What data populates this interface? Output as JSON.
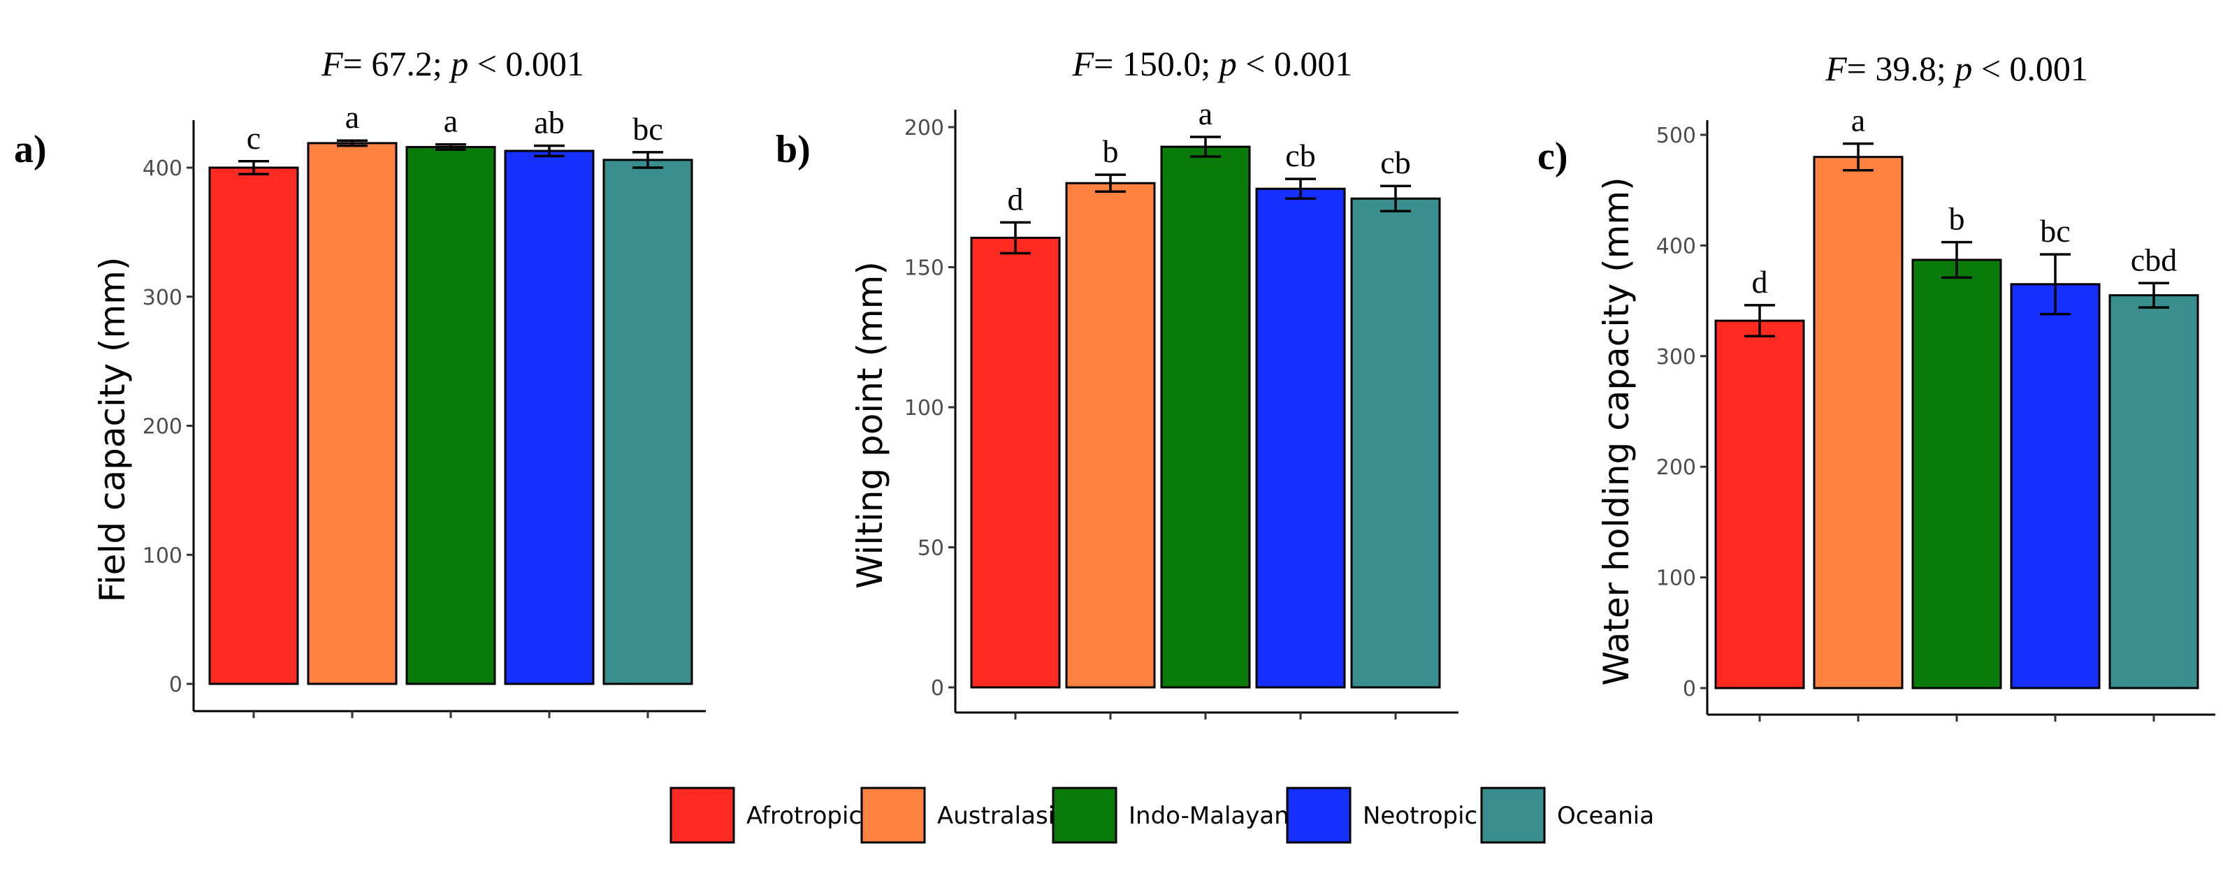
{
  "chart_data": [
    {
      "type": "bar",
      "panel_label": "a)",
      "title": {
        "F_label": "F",
        "rest": "= 67.2; ",
        "p_label": "p",
        "tail": " < 0.001"
      },
      "ylabel": "Field capacity (mm)",
      "xlabel": "",
      "ylim": [
        0,
        440
      ],
      "yticks": [
        0,
        100,
        200,
        300,
        400
      ],
      "categories": [
        "Afrotropic",
        "Australasia",
        "Indo-Malayan",
        "Neotropic",
        "Oceania"
      ],
      "values": [
        400,
        419,
        416,
        413,
        406
      ],
      "errors": [
        5,
        2,
        2,
        4,
        6
      ],
      "letters": [
        "c",
        "a",
        "a",
        "ab",
        "bc"
      ]
    },
    {
      "type": "bar",
      "panel_label": "b)",
      "title": {
        "F_label": "F",
        "rest": "= 150.0; ",
        "p_label": "p",
        "tail": " < 0.001"
      },
      "ylabel": "Wilting point (mm)",
      "xlabel": "",
      "ylim": [
        0,
        205
      ],
      "yticks": [
        0,
        50,
        100,
        150,
        200
      ],
      "categories": [
        "Afrotropic",
        "Australasia",
        "Indo-Malayan",
        "Neotropic",
        "Oceania"
      ],
      "values": [
        160.5,
        180,
        193,
        178,
        174.5
      ],
      "errors": [
        5.5,
        3,
        3.5,
        3.5,
        4.5
      ],
      "letters": [
        "d",
        "b",
        "a",
        "cb",
        "cb"
      ]
    },
    {
      "type": "bar",
      "panel_label": "c)",
      "title": {
        "F_label": "F",
        "rest": "= 39.8; ",
        "p_label": "p",
        "tail": " < 0.001"
      },
      "ylabel": "Water holding capacity (mm)",
      "xlabel": "",
      "ylim": [
        0,
        515
      ],
      "yticks": [
        0,
        100,
        200,
        300,
        400,
        500
      ],
      "categories": [
        "Afrotropic",
        "Australasia",
        "Indo-Malayan",
        "Neotropic",
        "Oceania"
      ],
      "values": [
        332,
        480,
        387,
        365,
        355
      ],
      "errors": [
        14,
        12,
        16,
        27,
        11
      ],
      "letters": [
        "d",
        "a",
        "b",
        "bc",
        "cbd"
      ]
    }
  ],
  "legend": {
    "entries": [
      {
        "label": "Afrotropic",
        "color": "#ff2a22"
      },
      {
        "label": "Australasia",
        "color": "#ff8340"
      },
      {
        "label": "Indo-Malayan",
        "color": "#0a7a0a"
      },
      {
        "label": "Neotropic",
        "color": "#1530ff"
      },
      {
        "label": "Oceania",
        "color": "#3b8e8e"
      }
    ]
  }
}
